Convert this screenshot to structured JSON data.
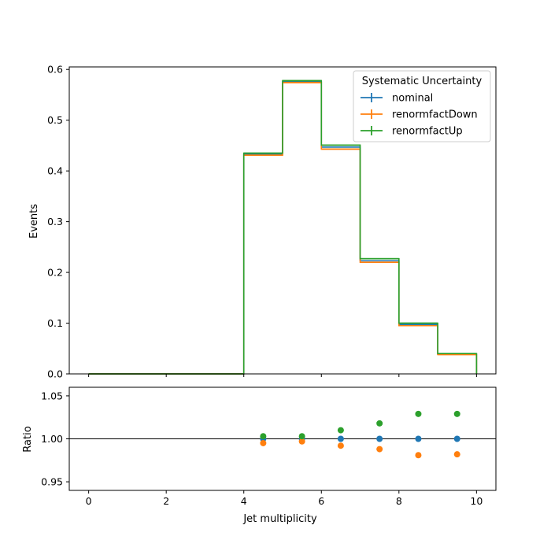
{
  "chart_data": [
    {
      "type": "line",
      "panel": "main",
      "ylabel": "Events",
      "xlim": [
        -0.5,
        10.5
      ],
      "ylim": [
        0,
        0.605
      ],
      "y_ticks": [
        "0.0",
        "0.1",
        "0.2",
        "0.3",
        "0.4",
        "0.5",
        "0.6"
      ],
      "y_tick_values": [
        0,
        0.1,
        0.2,
        0.3,
        0.4,
        0.5,
        0.6
      ],
      "bin_edges": [
        0,
        1,
        2,
        3,
        4,
        5,
        6,
        7,
        8,
        9,
        10
      ],
      "legend_title": "Systematic Uncertainty",
      "legend_placement": "top-right",
      "grid": false,
      "series": [
        {
          "name": "nominal",
          "color": "#1f77b4",
          "values": [
            0,
            0,
            0,
            0,
            0.433,
            0.576,
            0.447,
            0.223,
            0.097,
            0.039
          ]
        },
        {
          "name": "renormfactDown",
          "color": "#ff7f0e",
          "values": [
            0,
            0,
            0,
            0,
            0.431,
            0.574,
            0.443,
            0.22,
            0.095,
            0.038
          ]
        },
        {
          "name": "renormfactUp",
          "color": "#2ca02c",
          "values": [
            0,
            0,
            0,
            0,
            0.435,
            0.578,
            0.451,
            0.227,
            0.1,
            0.04
          ]
        }
      ]
    },
    {
      "type": "scatter",
      "panel": "ratio",
      "xlabel": "Jet multiplicity",
      "ylabel": "Ratio",
      "xlim": [
        -0.5,
        10.5
      ],
      "ylim": [
        0.94,
        1.06
      ],
      "x_ticks": [
        "0",
        "2",
        "4",
        "6",
        "8",
        "10"
      ],
      "x_tick_values": [
        0,
        2,
        4,
        6,
        8,
        10
      ],
      "y_ticks": [
        "0.95",
        "1.00",
        "1.05"
      ],
      "y_tick_values": [
        0.95,
        1.0,
        1.05
      ],
      "reference_line": 1.0,
      "x": [
        4.5,
        5.5,
        6.5,
        7.5,
        8.5,
        9.5
      ],
      "series": [
        {
          "name": "nominal",
          "color": "#1f77b4",
          "values": [
            1.0,
            1.0,
            1.0,
            1.0,
            1.0,
            1.0
          ]
        },
        {
          "name": "renormfactDown",
          "color": "#ff7f0e",
          "values": [
            0.995,
            0.997,
            0.992,
            0.988,
            0.981,
            0.982
          ]
        },
        {
          "name": "renormfactUp",
          "color": "#2ca02c",
          "values": [
            1.003,
            1.003,
            1.01,
            1.018,
            1.029,
            1.029
          ]
        }
      ]
    }
  ]
}
